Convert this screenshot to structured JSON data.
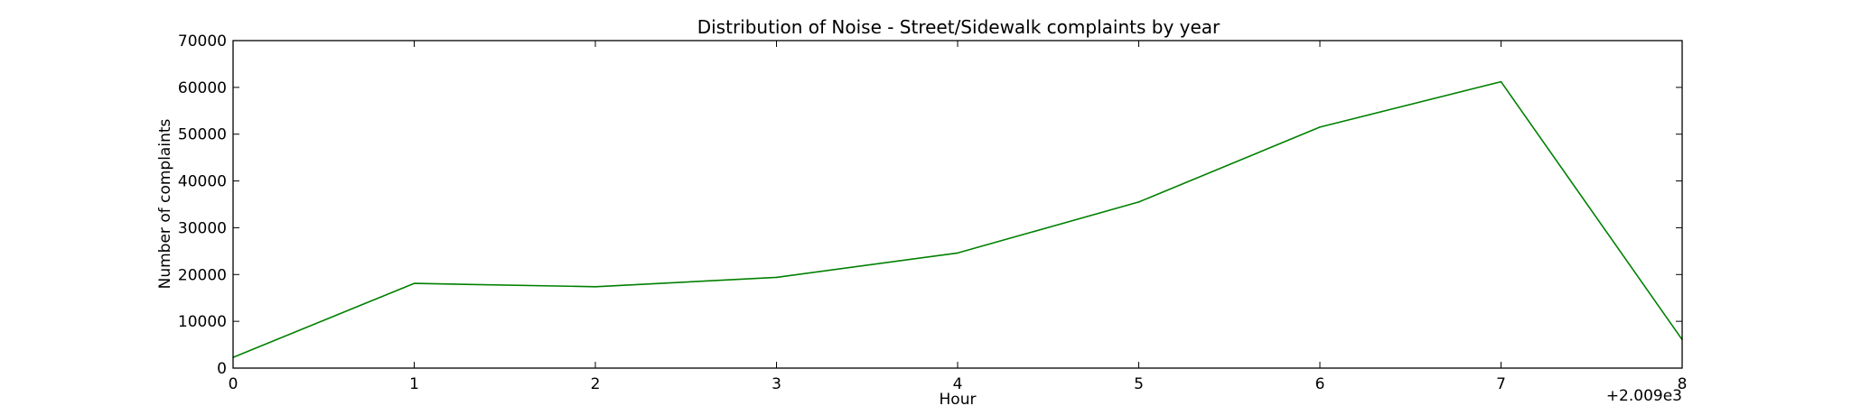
{
  "chart_data": {
    "type": "line",
    "title": "Distribution of  Noise - Street/Sidewalk complaints by year",
    "xlabel": "Hour",
    "ylabel": "Number of complaints",
    "x_offset_label": "+2.009e3",
    "xlim": [
      0,
      8
    ],
    "ylim": [
      0,
      70000
    ],
    "x_ticks": [
      0,
      1,
      2,
      3,
      4,
      5,
      6,
      7,
      8
    ],
    "y_ticks": [
      0,
      10000,
      20000,
      30000,
      40000,
      50000,
      60000,
      70000
    ],
    "grid": false,
    "series": [
      {
        "color": "#008000",
        "x": [
          0,
          1,
          2,
          3,
          4,
          5,
          6,
          7,
          8
        ],
        "values": [
          2300,
          18100,
          17400,
          19400,
          24600,
          35500,
          51500,
          61200,
          6100
        ]
      }
    ]
  }
}
